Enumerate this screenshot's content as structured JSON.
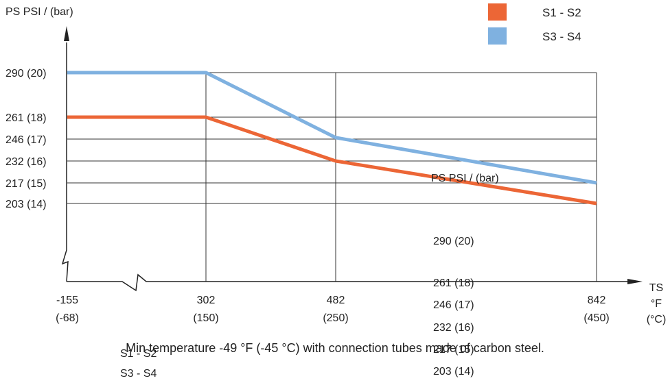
{
  "chart_data": {
    "type": "line",
    "ylabel": "PS PSI / (bar)",
    "xlabel": [
      "TS",
      "°F",
      "(°C)"
    ],
    "x_ticks": [
      {
        "value": -155,
        "f": "-155",
        "c": "(-68)"
      },
      {
        "value": 302,
        "f": "302",
        "c": "(150)"
      },
      {
        "value": 482,
        "f": "482",
        "c": "(250)"
      },
      {
        "value": 842,
        "f": "842",
        "c": "(450)"
      }
    ],
    "y_ticks": [
      {
        "value": 290,
        "label": "290 (20)"
      },
      {
        "value": 261,
        "label": "261 (18)"
      },
      {
        "value": 246,
        "label": "246 (17)"
      },
      {
        "value": 232,
        "label": "232 (16)"
      },
      {
        "value": 217,
        "label": "217 (15)"
      },
      {
        "value": 203,
        "label": "203 (14)"
      }
    ],
    "series": [
      {
        "name": "S1 - S2",
        "color": "#ec6636",
        "points": [
          [
            -155,
            261
          ],
          [
            302,
            261
          ],
          [
            482,
            232
          ],
          [
            842,
            203
          ]
        ]
      },
      {
        "name": "S3 - S4",
        "color": "#7fb1e0",
        "points": [
          [
            -155,
            290
          ],
          [
            302,
            290
          ],
          [
            482,
            247
          ],
          [
            842,
            217
          ]
        ]
      }
    ],
    "axis_break": true,
    "grid": true,
    "legend_position": "top-right"
  },
  "caption": "Min temperature -49 °F (-45 °C) with connection tubes made of carbon steel.",
  "overlay": {
    "ylabel": "PS PSI / (bar)",
    "y_ticks": [
      "290 (20)",
      "261 (18)",
      "246 (17)",
      "232 (16)",
      "217 (15)",
      "203 (14)"
    ],
    "legend": [
      "S1 - S2",
      "S3 - S4"
    ]
  }
}
